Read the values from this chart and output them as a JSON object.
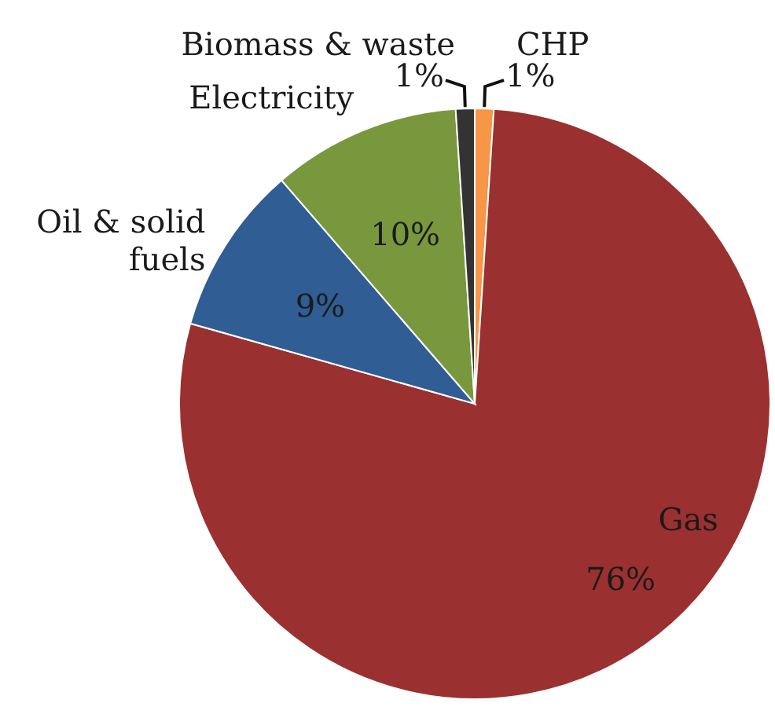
{
  "chart_data": {
    "type": "pie",
    "categories": [
      "CHP",
      "Gas",
      "Oil & solid fuels",
      "Electricity",
      "Biomass & waste"
    ],
    "values": [
      1,
      76,
      9,
      10,
      1
    ],
    "colors": [
      "#f79646",
      "#9b3030",
      "#2f5d94",
      "#79973d",
      "#333333"
    ],
    "value_labels": [
      "1%",
      "76%",
      "9%",
      "10%",
      "1%"
    ]
  }
}
